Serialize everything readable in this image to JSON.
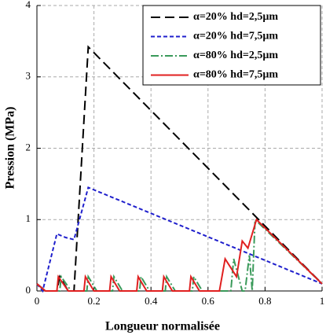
{
  "chart_data": {
    "type": "line",
    "xlabel": "Longueur normalisée",
    "ylabel": "Pression (MPa)",
    "xlim": [
      0,
      1
    ],
    "ylim": [
      0,
      4
    ],
    "xticks": [
      0,
      0.2,
      0.4,
      0.6,
      0.8,
      1
    ],
    "yticks": [
      0,
      1,
      2,
      3,
      4
    ],
    "grid": true,
    "legend": "upper right",
    "series": [
      {
        "name": "α=20% hd=2,5µm",
        "color": "#000000",
        "dash": "12,6",
        "x": [
          0,
          0.03,
          0.07,
          0.08,
          0.11,
          0.13,
          0.18,
          1
        ],
        "values": [
          0.1,
          0,
          0,
          0.2,
          0,
          0,
          3.42,
          0.1
        ]
      },
      {
        "name": "α=20% hd=7,5µm",
        "color": "#1f1fcc",
        "dash": "5,3",
        "x": [
          0,
          0.02,
          0.07,
          0.1,
          0.13,
          0.18,
          1
        ],
        "values": [
          0.1,
          0,
          0.8,
          0.75,
          0.72,
          1.45,
          0.1
        ]
      },
      {
        "name": "α=80% hd=2,5µm",
        "color": "#3a9a5a",
        "dash": "10,3,2,3",
        "x": [
          0,
          0.03,
          0.08,
          0.085,
          0.12,
          0.175,
          0.18,
          0.21,
          0.265,
          0.27,
          0.3,
          0.36,
          0.365,
          0.395,
          0.45,
          0.455,
          0.485,
          0.545,
          0.55,
          0.58,
          0.68,
          0.69,
          0.72,
          0.73,
          0.745,
          0.755,
          0.765,
          1
        ],
        "values": [
          0.1,
          0,
          0,
          0.2,
          0,
          0,
          0.2,
          0,
          0,
          0.2,
          0,
          0,
          0.2,
          0,
          0,
          0.2,
          0,
          0,
          0.2,
          0,
          0,
          0.45,
          0,
          0,
          0.5,
          0,
          1.0,
          0.1
        ]
      },
      {
        "name": "α=80% hd=7,5µm",
        "color": "#e02020",
        "dash": "none",
        "x": [
          0,
          0.03,
          0.07,
          0.075,
          0.11,
          0.165,
          0.17,
          0.2,
          0.255,
          0.26,
          0.29,
          0.35,
          0.355,
          0.385,
          0.44,
          0.445,
          0.475,
          0.535,
          0.54,
          0.57,
          0.64,
          0.66,
          0.7,
          0.72,
          0.74,
          0.77,
          1
        ],
        "values": [
          0.1,
          0,
          0,
          0.2,
          0,
          0,
          0.2,
          0,
          0,
          0.2,
          0,
          0,
          0.2,
          0,
          0,
          0.2,
          0,
          0,
          0.2,
          0,
          0,
          0.45,
          0.2,
          0.7,
          0.6,
          1.0,
          0.1
        ]
      }
    ]
  }
}
